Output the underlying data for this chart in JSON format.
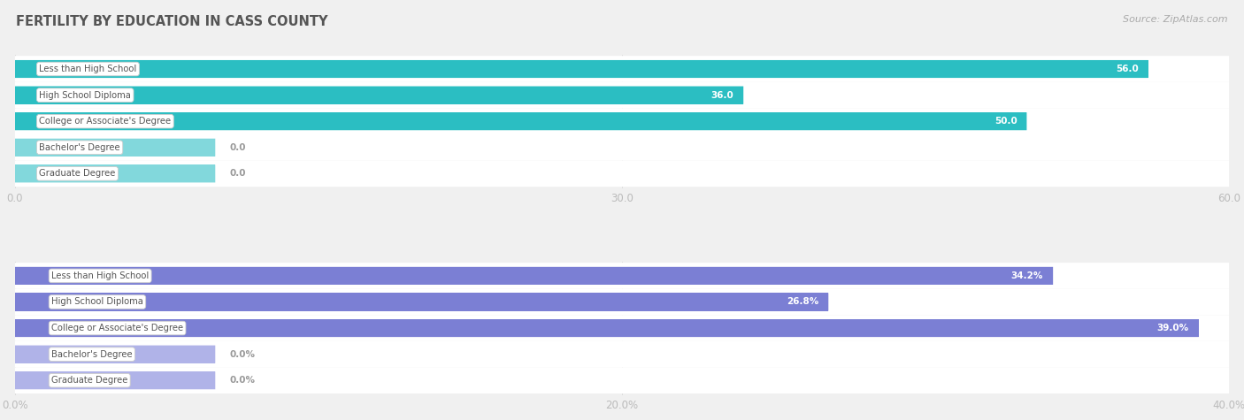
{
  "title": "FERTILITY BY EDUCATION IN CASS COUNTY",
  "source": "Source: ZipAtlas.com",
  "top_chart": {
    "categories": [
      "Less than High School",
      "High School Diploma",
      "College or Associate's Degree",
      "Bachelor's Degree",
      "Graduate Degree"
    ],
    "values": [
      56.0,
      36.0,
      50.0,
      0.0,
      0.0
    ],
    "xlim": [
      0,
      60
    ],
    "xticks": [
      0.0,
      30.0,
      60.0
    ],
    "xtick_labels": [
      "0.0",
      "30.0",
      "60.0"
    ],
    "bar_color_high": "#2bbec2",
    "bar_color_low": "#82d8dc",
    "value_labels": [
      "56.0",
      "36.0",
      "50.0",
      "0.0",
      "0.0"
    ],
    "threshold": 20
  },
  "bottom_chart": {
    "categories": [
      "Less than High School",
      "High School Diploma",
      "College or Associate's Degree",
      "Bachelor's Degree",
      "Graduate Degree"
    ],
    "values": [
      34.2,
      26.8,
      39.0,
      0.0,
      0.0
    ],
    "xlim": [
      0,
      40
    ],
    "xticks": [
      0.0,
      20.0,
      40.0
    ],
    "xtick_labels": [
      "0.0%",
      "20.0%",
      "40.0%"
    ],
    "bar_color_high": "#7b7fd4",
    "bar_color_low": "#b0b3e8",
    "value_labels": [
      "34.2%",
      "26.8%",
      "39.0%",
      "0.0%",
      "0.0%"
    ],
    "threshold": 10
  },
  "bg_color": "#f0f0f0",
  "row_bg_color": "#ffffff",
  "label_box_color": "#ffffff",
  "label_text_color": "#555555",
  "value_text_color_inside": "#ffffff",
  "value_text_color_outside": "#999999",
  "title_color": "#555555",
  "axis_text_color": "#bbbbbb",
  "source_color": "#aaaaaa",
  "grid_color": "#dddddd"
}
